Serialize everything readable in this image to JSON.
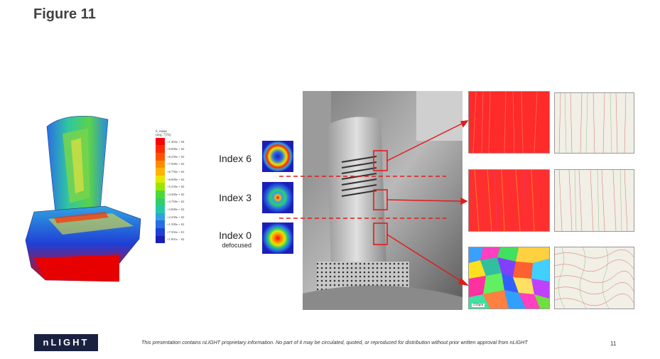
{
  "slide": {
    "title": "Figure 11",
    "page_number": "11"
  },
  "legend": {
    "header_line1": "S, mises",
    "header_line2": "(avg: 75%)",
    "entries": [
      {
        "label": "+1.403e + 04",
        "color": "#ff0000"
      },
      {
        "label": "+9.000e + 02",
        "color": "#ff2a00"
      },
      {
        "label": "+8.250e + 02",
        "color": "#ff5500"
      },
      {
        "label": "+7.500e + 02",
        "color": "#ff8c00"
      },
      {
        "label": "+6.750e + 02",
        "color": "#ffb400"
      },
      {
        "label": "+6.000e + 02",
        "color": "#e6e600"
      },
      {
        "label": "+5.250e + 02",
        "color": "#99e600"
      },
      {
        "label": "+4.500e + 02",
        "color": "#4cd93c"
      },
      {
        "label": "+3.750e + 02",
        "color": "#2fcf6a"
      },
      {
        "label": "+3.000e + 02",
        "color": "#26c7a6"
      },
      {
        "label": "+2.250e + 02",
        "color": "#2fa3e0"
      },
      {
        "label": "+1.500e + 02",
        "color": "#2a6ee6"
      },
      {
        "label": "+7.502e + 01",
        "color": "#1f3fd6"
      },
      {
        "label": "+1.001e − 02",
        "color": "#1a1fb8"
      }
    ]
  },
  "beams": [
    {
      "label": "Index 6",
      "sub": ""
    },
    {
      "label": "Index 3",
      "sub": ""
    },
    {
      "label": "Index 0",
      "sub": "defocused"
    }
  ],
  "micro": {
    "scale_label": "250µm"
  },
  "footer": {
    "logo": "nLIGHT",
    "disclaimer": "This presentation contains nLIGHT proprietary information.  No part of it may be circulated, quoted, or reproduced for distribution without prior written approval from nLIGHT"
  },
  "colors": {
    "arrow": "#e41b1b",
    "logo_bg": "#1a2140"
  }
}
